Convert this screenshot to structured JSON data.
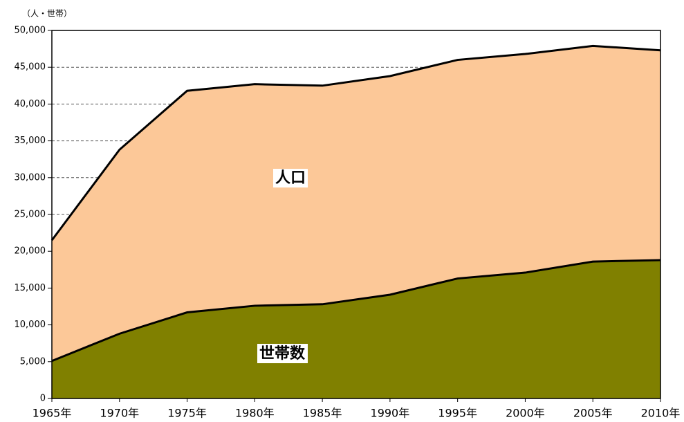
{
  "chart_data": {
    "type": "area",
    "y_axis_label": "（人・世帯）",
    "categories": [
      "1965年",
      "1970年",
      "1975年",
      "1980年",
      "1985年",
      "1990年",
      "1995年",
      "2000年",
      "2005年",
      "2010年"
    ],
    "series": [
      {
        "name": "人口",
        "color": "#fcc898",
        "values": [
          21500,
          33800,
          41800,
          42700,
          42500,
          43800,
          46000,
          46800,
          47900,
          47300
        ]
      },
      {
        "name": "世帯数",
        "color": "#808000",
        "values": [
          5100,
          8800,
          11700,
          12600,
          12800,
          14100,
          16300,
          17100,
          18600,
          18800
        ]
      }
    ],
    "ylim": [
      0,
      50000
    ],
    "yticks": [
      0,
      {
        "value": 5000,
        "label": "5,000"
      },
      {
        "value": 10000,
        "label": "10,000"
      },
      {
        "value": 15000,
        "label": "15,000"
      },
      {
        "value": 20000,
        "label": "20,000"
      },
      {
        "value": 25000,
        "label": "25,000"
      },
      {
        "value": 30000,
        "label": "30,000"
      },
      {
        "value": 35000,
        "label": "35,000"
      },
      {
        "value": 40000,
        "label": "40,000"
      },
      {
        "value": 45000,
        "label": "45,000"
      },
      {
        "value": 50000,
        "label": "50,000"
      }
    ],
    "grid": true
  }
}
